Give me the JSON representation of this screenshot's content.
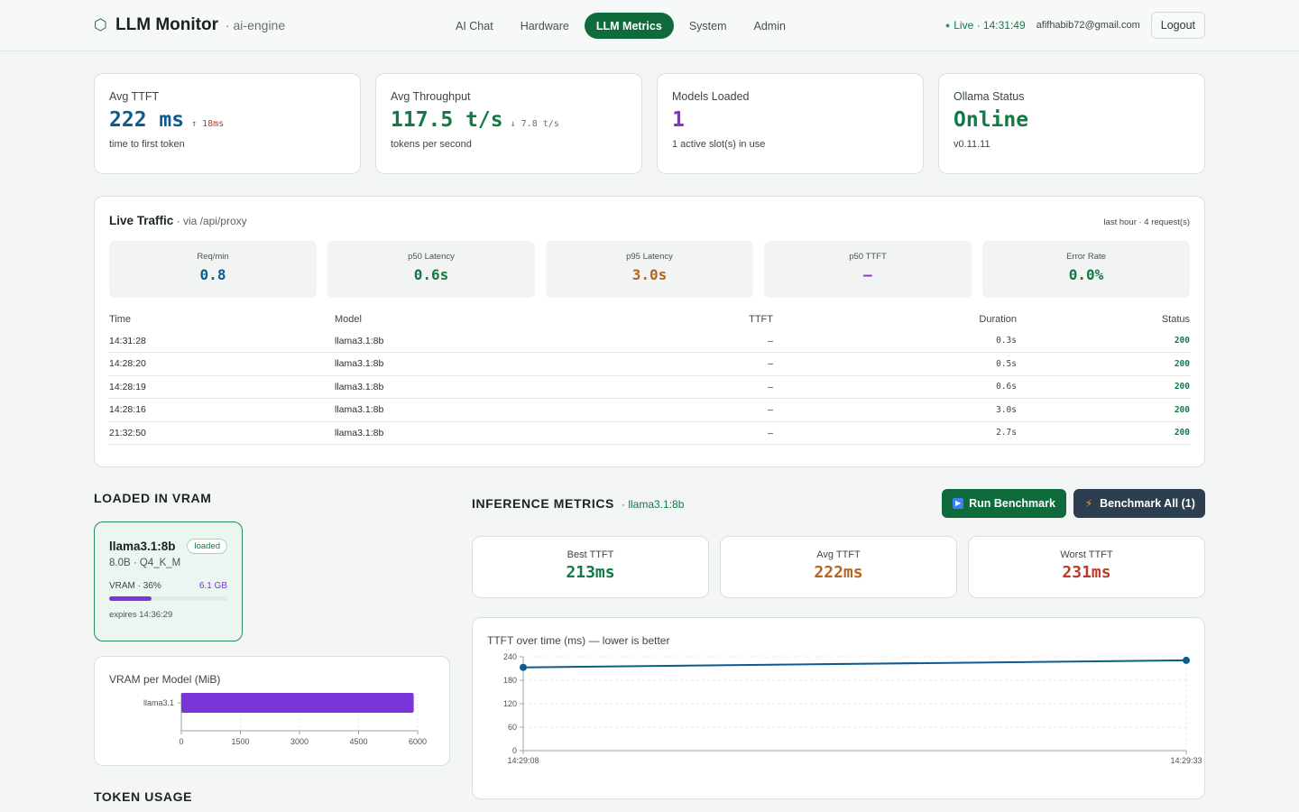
{
  "header": {
    "brand_icon": "hexagon-icon",
    "title": "LLM Monitor",
    "subtitle": "· ai-engine",
    "nav": [
      {
        "label": "AI Chat",
        "active": false
      },
      {
        "label": "Hardware",
        "active": false
      },
      {
        "label": "LLM Metrics",
        "active": true
      },
      {
        "label": "System",
        "active": false
      },
      {
        "label": "Admin",
        "active": false
      }
    ],
    "live_label": "Live · 14:31:49",
    "email": "afifhabib72@gmail.com",
    "logout_label": "Logout"
  },
  "stats": [
    {
      "label": "Avg TTFT",
      "value": "222 ms",
      "delta": "↑ 18ms",
      "foot": "time to first token",
      "color": "#0d5c8f",
      "delta_color": "#c0392b"
    },
    {
      "label": "Avg Throughput",
      "value": "117.5 t/s",
      "delta": "↓ 7.8 t/s",
      "foot": "tokens per second",
      "color": "#127a44",
      "delta_color": "#66716b"
    },
    {
      "label": "Models Loaded",
      "value": "1",
      "delta": "",
      "foot": "1 active slot(s) in use",
      "color": "#8e2fd6",
      "delta_color": "#66716b"
    },
    {
      "label": "Ollama Status",
      "value": "Online",
      "delta": "",
      "foot": "v0.11.11",
      "color": "#127a44",
      "delta_color": "#66716b"
    }
  ],
  "traffic": {
    "title": "Live Traffic",
    "subtitle": " · via /api/proxy",
    "meta": "last hour · 4 request(s)",
    "kpis": [
      {
        "label": "Req/min",
        "value": "0.8",
        "color": "#0d5c8f"
      },
      {
        "label": "p50 Latency",
        "value": "0.6s",
        "color": "#127a44"
      },
      {
        "label": "p95 Latency",
        "value": "3.0s",
        "color": "#b5651d"
      },
      {
        "label": "p50 TTFT",
        "value": "–",
        "color": "#8e2fd6"
      },
      {
        "label": "Error Rate",
        "value": "0.0%",
        "color": "#127a44"
      }
    ],
    "columns": [
      "Time",
      "Model",
      "TTFT",
      "Duration",
      "Status"
    ],
    "rows": [
      {
        "time": "14:31:28",
        "model": "llama3.1:8b",
        "ttft": "–",
        "duration": "0.3s",
        "status": "200"
      },
      {
        "time": "14:28:20",
        "model": "llama3.1:8b",
        "ttft": "–",
        "duration": "0.5s",
        "status": "200"
      },
      {
        "time": "14:28:19",
        "model": "llama3.1:8b",
        "ttft": "–",
        "duration": "0.6s",
        "status": "200"
      },
      {
        "time": "14:28:16",
        "model": "llama3.1:8b",
        "ttft": "–",
        "duration": "3.0s",
        "status": "200"
      },
      {
        "time": "21:32:50",
        "model": "llama3.1:8b",
        "ttft": "–",
        "duration": "2.7s",
        "status": "200"
      }
    ]
  },
  "vram": {
    "section_title": "LOADED IN VRAM",
    "model_name": "llama3.1:8b",
    "badge": "loaded",
    "meta": "8.0B · Q4_K_M",
    "vram_label": "VRAM · 36%",
    "vram_pct": 36,
    "vram_size": "6.1 GB",
    "expires": "expires 14:36:29",
    "chart_title": "VRAM per Model (MiB)"
  },
  "token_usage": {
    "section_title": "TOKEN USAGE"
  },
  "inference": {
    "section_title": "INFERENCE METRICS",
    "model": "· llama3.1:8b",
    "run_label": "Run Benchmark",
    "all_label": "Benchmark All (1)",
    "run_icon": "play-icon",
    "all_icon": "bolt-icon",
    "cards": [
      {
        "label": "Best TTFT",
        "value": "213ms",
        "color": "#127a44"
      },
      {
        "label": "Avg TTFT",
        "value": "222ms",
        "color": "#b5651d"
      },
      {
        "label": "Worst TTFT",
        "value": "231ms",
        "color": "#c0392b"
      }
    ],
    "chart_title": "TTFT over time (ms) — lower is better"
  },
  "chart_data": [
    {
      "type": "bar",
      "orientation": "horizontal",
      "title": "VRAM per Model (MiB)",
      "categories": [
        "llama3.1"
      ],
      "values": [
        5900
      ],
      "xlim": [
        0,
        6000
      ],
      "xticks": [
        0,
        1500,
        3000,
        4500,
        6000
      ],
      "color": "#7b35d8",
      "grid": true
    },
    {
      "type": "line",
      "title": "TTFT over time (ms) — lower is better",
      "x": [
        "14:29:08",
        "14:29:33"
      ],
      "values": [
        213,
        231
      ],
      "ylim": [
        0,
        240
      ],
      "yticks": [
        0,
        60,
        120,
        180,
        240
      ],
      "color": "#0d5c8f",
      "grid": true
    }
  ]
}
